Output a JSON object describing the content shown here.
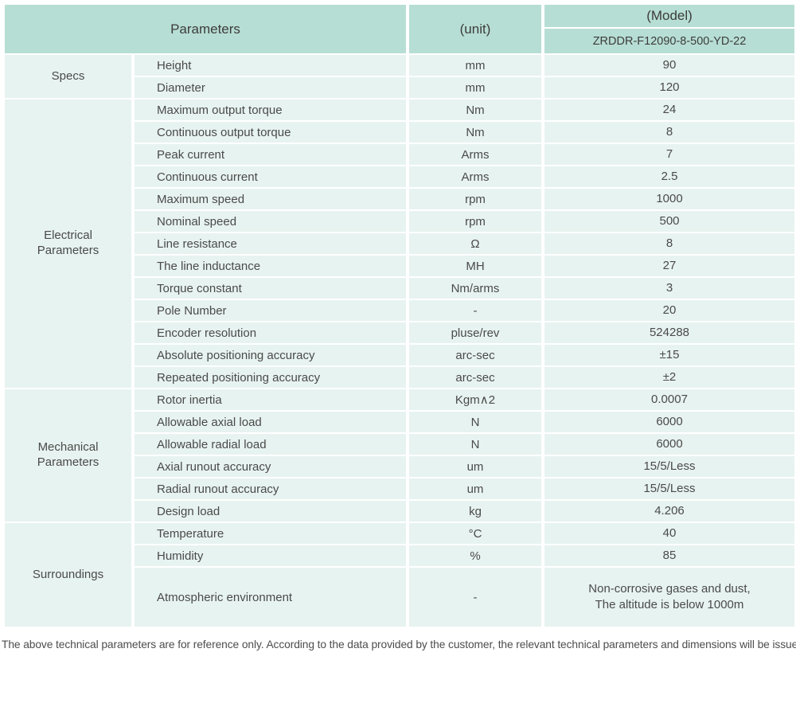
{
  "header": {
    "parameters_label": "Parameters",
    "unit_label": "(unit)",
    "model_label": "(Model)",
    "model_value": "ZRDDR-F12090-8-500-YD-22"
  },
  "groups": [
    {
      "name": "Specs",
      "rows": [
        {
          "param": "Height",
          "unit": "mm",
          "value": "90"
        },
        {
          "param": "Diameter",
          "unit": "mm",
          "value": "120"
        }
      ]
    },
    {
      "name": "Electrical\nParameters",
      "rows": [
        {
          "param": "Maximum output torque",
          "unit": "Nm",
          "value": "24"
        },
        {
          "param": "Continuous output torque",
          "unit": "Nm",
          "value": "8"
        },
        {
          "param": "Peak current",
          "unit": "Arms",
          "value": "7"
        },
        {
          "param": "Continuous current",
          "unit": "Arms",
          "value": "2.5"
        },
        {
          "param": "Maximum speed",
          "unit": "rpm",
          "value": "1000"
        },
        {
          "param": "Nominal speed",
          "unit": "rpm",
          "value": "500"
        },
        {
          "param": "Line resistance",
          "unit": "Ω",
          "value": "8"
        },
        {
          "param": "The line inductance",
          "unit": "MH",
          "value": "27"
        },
        {
          "param": "Torque constant",
          "unit": "Nm/arms",
          "value": "3"
        },
        {
          "param": "Pole Number",
          "unit": "-",
          "value": "20"
        },
        {
          "param": "Encoder resolution",
          "unit": "pluse/rev",
          "value": "524288"
        },
        {
          "param": "Absolute positioning accuracy",
          "unit": "arc-sec",
          "value": "±15"
        },
        {
          "param": "Repeated positioning accuracy",
          "unit": "arc-sec",
          "value": "±2"
        }
      ]
    },
    {
      "name": "Mechanical\nParameters",
      "rows": [
        {
          "param": "Rotor inertia",
          "unit": "Kgm∧2",
          "value": "0.0007"
        },
        {
          "param": "Allowable axial load",
          "unit": "N",
          "value": "6000"
        },
        {
          "param": "Allowable radial load",
          "unit": "N",
          "value": "6000"
        },
        {
          "param": "Axial runout accuracy",
          "unit": "um",
          "value": "15/5/Less"
        },
        {
          "param": "Radial runout accuracy",
          "unit": "um",
          "value": "15/5/Less"
        },
        {
          "param": "Design load",
          "unit": "kg",
          "value": "4.206"
        }
      ]
    },
    {
      "name": "Surroundings",
      "rows": [
        {
          "param": "Temperature",
          "unit": "°C",
          "value": "40"
        },
        {
          "param": "Humidity",
          "unit": "%",
          "value": "85"
        },
        {
          "param": "Atmospheric environment",
          "unit": "-",
          "value": "Non-corrosive gases and dust,\nThe altitude is below 1000m"
        }
      ]
    }
  ],
  "footer": {
    "note": "The above technical parameters are for reference only. According to the data provided by the customer, the relevant technical parameters and dimensions will be issued."
  },
  "colors": {
    "header_bg": "#b7ded4",
    "row_bg": "#e7f3f0",
    "text": "#4a4a4a"
  }
}
